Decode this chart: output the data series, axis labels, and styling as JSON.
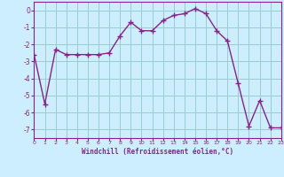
{
  "x": [
    0,
    1,
    2,
    3,
    4,
    5,
    6,
    7,
    8,
    9,
    10,
    11,
    12,
    13,
    14,
    15,
    16,
    17,
    18,
    19,
    20,
    21,
    22,
    23
  ],
  "y": [
    -2.6,
    -5.5,
    -2.3,
    -2.6,
    -2.6,
    -2.6,
    -2.6,
    -2.5,
    -1.5,
    -0.7,
    -1.2,
    -1.2,
    -0.6,
    -0.3,
    -0.2,
    0.1,
    -0.2,
    -1.2,
    -1.8,
    -4.3,
    -6.8,
    -5.3,
    -6.9,
    -6.9
  ],
  "line_color": "#882288",
  "marker": "+",
  "marker_size": 4,
  "marker_linewidth": 1.0,
  "line_width": 1.0,
  "bg_color": "#cceeff",
  "grid_color": "#99cccc",
  "xlabel": "Windchill (Refroidissement éolien,°C)",
  "xlabel_color": "#882288",
  "tick_color": "#882288",
  "spine_color": "#882288",
  "xlim": [
    0,
    23
  ],
  "ylim": [
    -7.5,
    0.5
  ],
  "yticks": [
    0,
    -1,
    -2,
    -3,
    -4,
    -5,
    -6,
    -7
  ],
  "xticks": [
    0,
    1,
    2,
    3,
    4,
    5,
    6,
    7,
    8,
    9,
    10,
    11,
    12,
    13,
    14,
    15,
    16,
    17,
    18,
    19,
    20,
    21,
    22,
    23
  ]
}
